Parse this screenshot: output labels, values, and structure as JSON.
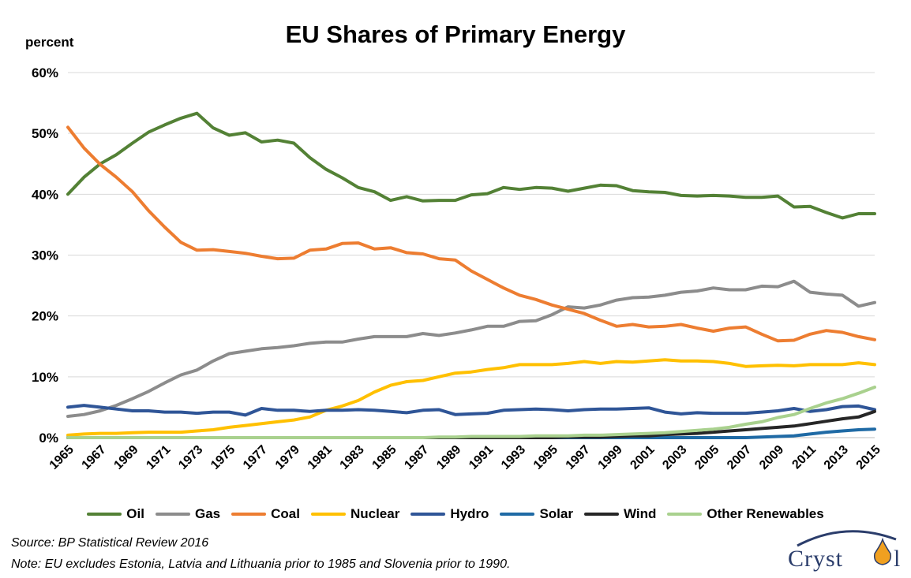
{
  "title": "EU Shares of Primary Energy",
  "unit_label": "percent",
  "source": "Source: BP Statistical Review 2016",
  "note": "Note: EU excludes Estonia, Latvia and Lithuania prior to 1985 and Slovenia prior to 1990.",
  "logo_text": "Cryst",
  "chart_data": {
    "type": "line",
    "title": "EU Shares of Primary Energy",
    "ylabel": "percent",
    "xlabel": "",
    "ylim": [
      0,
      60
    ],
    "yticks": [
      "0%",
      "10%",
      "20%",
      "30%",
      "40%",
      "50%",
      "60%"
    ],
    "ytick_values": [
      0,
      10,
      20,
      30,
      40,
      50,
      60
    ],
    "xticks": [
      "1965",
      "1967",
      "1969",
      "1971",
      "1973",
      "1975",
      "1977",
      "1979",
      "1981",
      "1983",
      "1985",
      "1987",
      "1989",
      "1991",
      "1993",
      "1995",
      "1997",
      "1999",
      "2001",
      "2003",
      "2005",
      "2007",
      "2009",
      "2011",
      "2013",
      "2015"
    ],
    "grid": "horizontal",
    "legend_position": "bottom",
    "x": [
      1965,
      1966,
      1967,
      1968,
      1969,
      1970,
      1971,
      1972,
      1973,
      1974,
      1975,
      1976,
      1977,
      1978,
      1979,
      1980,
      1981,
      1982,
      1983,
      1984,
      1985,
      1986,
      1987,
      1988,
      1989,
      1990,
      1991,
      1992,
      1993,
      1994,
      1995,
      1996,
      1997,
      1998,
      1999,
      2000,
      2001,
      2002,
      2003,
      2004,
      2005,
      2006,
      2007,
      2008,
      2009,
      2010,
      2011,
      2012,
      2013,
      2014,
      2015
    ],
    "series": [
      {
        "name": "Oil",
        "color": "#538135",
        "values": [
          40,
          42.8,
          45,
          46.5,
          48.4,
          50.2,
          51.4,
          52.5,
          53.3,
          50.9,
          49.7,
          50.1,
          48.6,
          48.9,
          48.4,
          46,
          44.1,
          42.7,
          41.1,
          40.4,
          39,
          39.6,
          38.9,
          39,
          39,
          39.9,
          40.1,
          41.1,
          40.8,
          41.1,
          41,
          40.5,
          41,
          41.5,
          41.4,
          40.6,
          40.4,
          40.3,
          39.8,
          39.7,
          39.8,
          39.7,
          39.5,
          39.5,
          39.7,
          37.9,
          38,
          37,
          36.1,
          36.8,
          36.8
        ]
      },
      {
        "name": "Gas",
        "color": "#8c8c8c",
        "values": [
          3.5,
          3.8,
          4.4,
          5.3,
          6.4,
          7.6,
          9,
          10.3,
          11.1,
          12.6,
          13.8,
          14.2,
          14.6,
          14.8,
          15.1,
          15.5,
          15.7,
          15.7,
          16.2,
          16.6,
          16.6,
          16.6,
          17.1,
          16.8,
          17.2,
          17.7,
          18.3,
          18.3,
          19.1,
          19.2,
          20.2,
          21.5,
          21.3,
          21.8,
          22.6,
          23,
          23.1,
          23.4,
          23.9,
          24.1,
          24.6,
          24.3,
          24.3,
          24.9,
          24.8,
          25.7,
          23.9,
          23.6,
          23.4,
          21.6,
          22.2
        ]
      },
      {
        "name": "Coal",
        "color": "#ed7d31",
        "values": [
          51,
          47.6,
          44.9,
          42.8,
          40.4,
          37.3,
          34.6,
          32.1,
          30.8,
          30.9,
          30.6,
          30.3,
          29.8,
          29.4,
          29.5,
          30.8,
          31,
          31.9,
          32,
          31,
          31.2,
          30.4,
          30.2,
          29.4,
          29.2,
          27.4,
          26,
          24.6,
          23.4,
          22.7,
          21.8,
          21.1,
          20.4,
          19.3,
          18.3,
          18.6,
          18.2,
          18.3,
          18.6,
          18,
          17.5,
          18,
          18.2,
          17,
          15.9,
          16,
          17,
          17.6,
          17.3,
          16.6,
          16.1
        ]
      },
      {
        "name": "Nuclear",
        "color": "#ffc000",
        "values": [
          0.4,
          0.6,
          0.7,
          0.7,
          0.8,
          0.9,
          0.9,
          0.9,
          1.1,
          1.3,
          1.7,
          2.0,
          2.3,
          2.6,
          2.9,
          3.4,
          4.5,
          5.2,
          6.1,
          7.5,
          8.6,
          9.2,
          9.4,
          10,
          10.6,
          10.8,
          11.2,
          11.5,
          12,
          12,
          12,
          12.2,
          12.5,
          12.2,
          12.5,
          12.4,
          12.6,
          12.8,
          12.6,
          12.6,
          12.5,
          12.2,
          11.7,
          11.8,
          11.9,
          11.8,
          12,
          12,
          12,
          12.3,
          12
        ]
      },
      {
        "name": "Hydro",
        "color": "#2f5597",
        "values": [
          5,
          5.3,
          5,
          4.7,
          4.4,
          4.4,
          4.2,
          4.2,
          4,
          4.2,
          4.2,
          3.7,
          4.8,
          4.5,
          4.5,
          4.3,
          4.5,
          4.5,
          4.6,
          4.5,
          4.3,
          4.1,
          4.5,
          4.6,
          3.8,
          3.9,
          4,
          4.5,
          4.6,
          4.7,
          4.6,
          4.4,
          4.6,
          4.7,
          4.7,
          4.8,
          4.9,
          4.2,
          3.9,
          4.1,
          4.0,
          4,
          4,
          4.2,
          4.4,
          4.8,
          4.3,
          4.6,
          5.1,
          5.2,
          4.6
        ]
      },
      {
        "name": "Solar",
        "color": "#1f6aa5",
        "values": [
          0,
          0,
          0,
          0,
          0,
          0,
          0,
          0,
          0,
          0,
          0,
          0,
          0,
          0,
          0,
          0,
          0,
          0,
          0,
          0,
          0,
          0,
          0,
          0,
          0,
          0,
          0,
          0,
          0,
          0,
          0,
          0,
          0,
          0,
          0,
          0,
          0,
          0,
          0,
          0,
          0,
          0,
          0,
          0.1,
          0.2,
          0.3,
          0.6,
          0.9,
          1.1,
          1.3,
          1.4
        ]
      },
      {
        "name": "Wind",
        "color": "#262626",
        "values": [
          0,
          0,
          0,
          0,
          0,
          0,
          0,
          0,
          0,
          0,
          0,
          0,
          0,
          0,
          0,
          0,
          0,
          0,
          0,
          0,
          0,
          0,
          0,
          0,
          0,
          0,
          0,
          0,
          0,
          0,
          0,
          0.1,
          0.1,
          0.1,
          0.2,
          0.3,
          0.3,
          0.5,
          0.6,
          0.7,
          0.9,
          1.1,
          1.3,
          1.5,
          1.7,
          1.9,
          2.3,
          2.7,
          3.1,
          3.4,
          4.3
        ]
      },
      {
        "name": "Other Renewables",
        "color": "#a9d18e",
        "values": [
          0,
          0,
          0,
          0,
          0,
          0,
          0,
          0,
          0,
          0,
          0,
          0,
          0,
          0,
          0,
          0,
          0,
          0,
          0,
          0,
          0,
          0,
          0,
          0.1,
          0.1,
          0.2,
          0.2,
          0.2,
          0.2,
          0.3,
          0.3,
          0.3,
          0.4,
          0.4,
          0.5,
          0.6,
          0.7,
          0.8,
          1.0,
          1.2,
          1.4,
          1.7,
          2.2,
          2.6,
          3.3,
          3.8,
          4.8,
          5.7,
          6.4,
          7.3,
          8.3
        ]
      }
    ]
  }
}
